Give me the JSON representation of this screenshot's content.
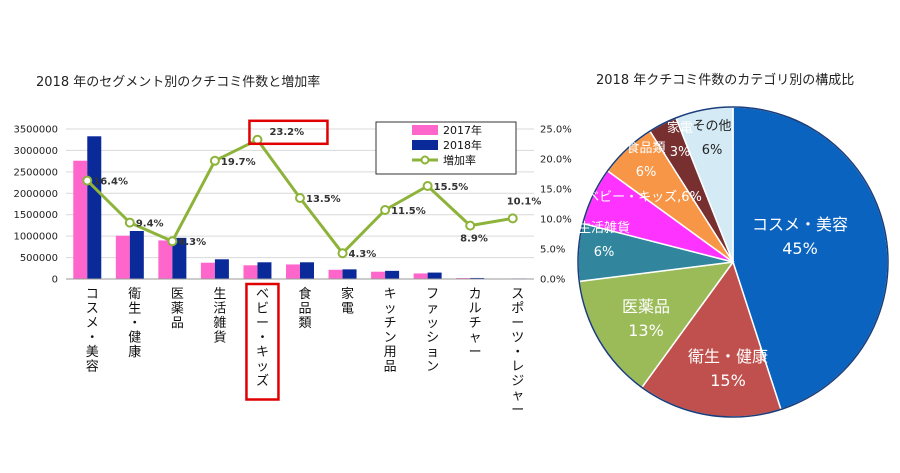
{
  "chart_data": [
    {
      "type": "bar",
      "title": "2018 年のセグメント別のクチコミ件数と増加率",
      "categories": [
        "コスメ・美容",
        "衛生・健康",
        "医薬品",
        "生活雑貨",
        "ベビー・キッズ",
        "食品類",
        "家電",
        "キッチン用品",
        "ファッション",
        "カルチャー",
        "スポーツ・レジャー"
      ],
      "series": [
        {
          "name": "2017年",
          "type": "bar",
          "color": "#ff66cc",
          "values": [
            2760000,
            1010000,
            900000,
            380000,
            320000,
            340000,
            215000,
            170000,
            130000,
            22000,
            12000
          ]
        },
        {
          "name": "2018年",
          "type": "bar",
          "color": "#0a2a9a",
          "values": [
            3330000,
            1120000,
            960000,
            460000,
            390000,
            390000,
            225000,
            190000,
            150000,
            24000,
            13000
          ]
        },
        {
          "name": "増加率",
          "type": "line",
          "axis": "right",
          "color": "#8db33a",
          "values": [
            16.4,
            9.4,
            6.3,
            19.7,
            23.2,
            13.5,
            4.3,
            11.5,
            15.5,
            8.9,
            10.1
          ]
        }
      ],
      "data_labels": [
        "16.4%",
        "9.4%",
        "6.3%",
        "19.7%",
        "23.2%",
        "13.5%",
        "4.3%",
        "11.5%",
        "15.5%",
        "8.9%",
        "10.1%"
      ],
      "ylim": [
        0,
        3500000
      ],
      "yticks": [
        "0",
        "500000",
        "1000000",
        "1500000",
        "2000000",
        "2500000",
        "3000000",
        "3500000"
      ],
      "y2lim": [
        0,
        25
      ],
      "y2ticks": [
        "0.0%",
        "5.0%",
        "10.0%",
        "15.0%",
        "20.0%",
        "25.0%"
      ],
      "legend_position": "top-right",
      "highlight": {
        "category": "ベビー・キッズ",
        "label": "23.2%",
        "color": "#e00000"
      }
    },
    {
      "type": "pie",
      "title": "2018 年クチコミ件数のカテゴリ別の構成比",
      "slices": [
        {
          "name": "コスメ・美容",
          "value": 45,
          "label": "45%",
          "color": "#0a63bf"
        },
        {
          "name": "衛生・健康",
          "value": 15,
          "label": "15%",
          "color": "#c0504d"
        },
        {
          "name": "医薬品",
          "value": 13,
          "label": "13%",
          "color": "#9bbb59"
        },
        {
          "name": "生活雑貨",
          "value": 6,
          "label": "6%",
          "color": "#31859c"
        },
        {
          "name": "ベビー・キッズ",
          "value": 6,
          "label": "ベビー・キッズ,6%",
          "color": "#ff33ff"
        },
        {
          "name": "食品類",
          "value": 6,
          "label": "6%",
          "color": "#f79646"
        },
        {
          "name": "家電",
          "value": 3,
          "label": "3%",
          "color": "#772f2f"
        },
        {
          "name": "その他",
          "value": 6,
          "label": "6%",
          "color": "#d4ebf5"
        }
      ]
    }
  ]
}
